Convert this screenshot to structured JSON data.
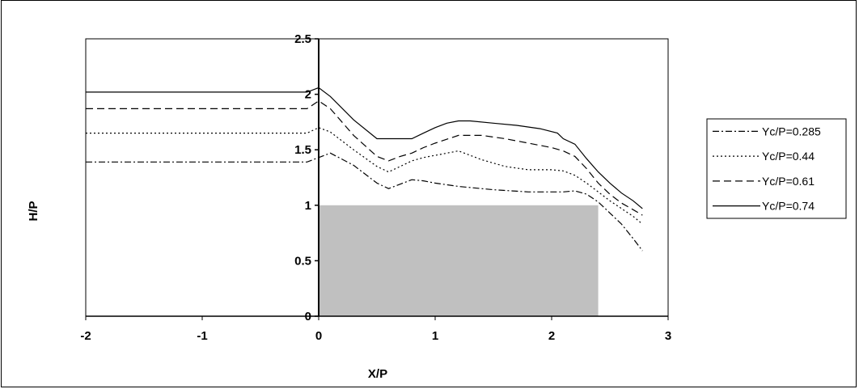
{
  "chart_data": {
    "type": "line",
    "xlabel": "X/P",
    "ylabel": "H/P",
    "xlim": [
      -2,
      3
    ],
    "ylim": [
      0,
      2.5
    ],
    "x_ticks": [
      -2,
      -1,
      0,
      1,
      2,
      3
    ],
    "y_ticks": [
      0,
      0.5,
      1,
      1.5,
      2,
      2.5
    ],
    "x_tick_labels": [
      "-2",
      "-1",
      "0",
      "1",
      "2",
      "3"
    ],
    "y_tick_labels": [
      "0",
      "0.5",
      "1",
      "1.5",
      "2",
      "2.5"
    ],
    "grid": false,
    "legend_position": "right",
    "obstacle": {
      "x_start": 0,
      "x_end": 2.4,
      "height": 1.0,
      "color": "#c0c0c0"
    },
    "series": [
      {
        "name": "Yc/P=0.285",
        "dash": "dashdot",
        "x": [
          -2,
          -0.1,
          0,
          0.1,
          0.3,
          0.5,
          0.6,
          0.7,
          0.8,
          0.9,
          1.0,
          1.2,
          1.5,
          1.8,
          2.1,
          2.2,
          2.3,
          2.4,
          2.5,
          2.6,
          2.7,
          2.78
        ],
        "y": [
          1.39,
          1.39,
          1.43,
          1.47,
          1.36,
          1.2,
          1.15,
          1.19,
          1.23,
          1.22,
          1.2,
          1.17,
          1.14,
          1.12,
          1.12,
          1.13,
          1.1,
          1.03,
          0.93,
          0.83,
          0.7,
          0.59
        ]
      },
      {
        "name": "Yc/P=0.44",
        "dash": "dot",
        "x": [
          -2,
          -0.1,
          0,
          0.1,
          0.3,
          0.5,
          0.6,
          0.7,
          0.8,
          0.9,
          1.0,
          1.2,
          1.4,
          1.6,
          1.8,
          2.0,
          2.1,
          2.2,
          2.3,
          2.4,
          2.5,
          2.6,
          2.7,
          2.78
        ],
        "y": [
          1.65,
          1.65,
          1.7,
          1.66,
          1.5,
          1.35,
          1.3,
          1.35,
          1.4,
          1.43,
          1.45,
          1.49,
          1.41,
          1.35,
          1.32,
          1.32,
          1.31,
          1.27,
          1.2,
          1.12,
          1.04,
          0.97,
          0.9,
          0.83
        ]
      },
      {
        "name": "Yc/P=0.61",
        "dash": "dash",
        "x": [
          -2,
          -0.1,
          0,
          0.1,
          0.3,
          0.5,
          0.6,
          0.7,
          0.8,
          0.9,
          1.0,
          1.2,
          1.4,
          1.6,
          1.8,
          2.0,
          2.1,
          2.2,
          2.3,
          2.4,
          2.5,
          2.6,
          2.7,
          2.78
        ],
        "y": [
          1.87,
          1.87,
          1.94,
          1.87,
          1.63,
          1.44,
          1.4,
          1.44,
          1.47,
          1.52,
          1.56,
          1.63,
          1.63,
          1.6,
          1.56,
          1.52,
          1.49,
          1.44,
          1.33,
          1.2,
          1.1,
          1.02,
          0.96,
          0.91
        ]
      },
      {
        "name": "Yc/P=0.74",
        "dash": "solid",
        "x": [
          -2,
          -0.1,
          0,
          0.1,
          0.3,
          0.5,
          0.6,
          0.7,
          0.8,
          0.9,
          1.0,
          1.1,
          1.2,
          1.3,
          1.5,
          1.7,
          1.9,
          2.05,
          2.1,
          2.2,
          2.3,
          2.4,
          2.5,
          2.6,
          2.7,
          2.78
        ],
        "y": [
          2.02,
          2.02,
          2.06,
          1.98,
          1.77,
          1.6,
          1.6,
          1.6,
          1.6,
          1.65,
          1.7,
          1.74,
          1.76,
          1.76,
          1.74,
          1.72,
          1.69,
          1.65,
          1.6,
          1.55,
          1.42,
          1.3,
          1.2,
          1.11,
          1.04,
          0.97
        ]
      }
    ]
  }
}
